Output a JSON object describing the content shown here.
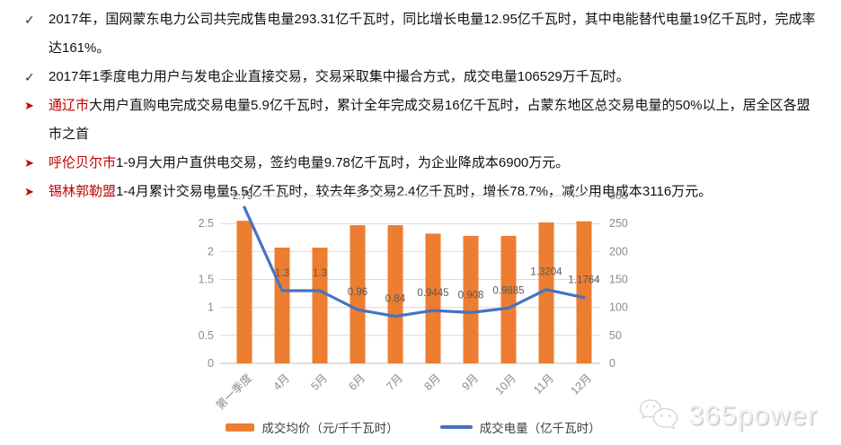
{
  "markers": {
    "check": "✓",
    "arrow": "➤"
  },
  "bullets": [
    {
      "style": "check",
      "lead": "",
      "text": "2017年，国网蒙东电力公司共完成售电量293.31亿千瓦时，同比增长电量12.95亿千瓦时，其中电能替代电量19亿千瓦时，完成率达161%。"
    },
    {
      "style": "check",
      "lead": "",
      "text": "2017年1季度电力用户与发电企业直接交易，交易采取集中撮合方式，成交电量106529万千瓦时。"
    },
    {
      "style": "arrow",
      "lead": "通辽市",
      "text": "大用户直购电完成交易电量5.9亿千瓦时，累计全年完成交易16亿千瓦时，占蒙东地区总交易电量的50%以上，居全区各盟市之首"
    },
    {
      "style": "arrow",
      "lead": "呼伦贝尔市",
      "text": "1-9月大用户直供电交易，签约电量9.78亿千瓦时，为企业降成本6900万元。"
    },
    {
      "style": "arrow",
      "lead": "锡林郭勒盟",
      "text": "1-4月累计交易电量5.5亿千瓦时，较去年多交易2.4亿千瓦时，增长78.7%，减少用电成本3116万元。"
    }
  ],
  "colors": {
    "accent_red": "#C00000",
    "bar_orange": "#ED7D31",
    "line_blue": "#4472C4",
    "grid_gray": "#D9D9D9",
    "axis_line_gray": "#BFBFBF",
    "tick_gray": "#8C8C8C",
    "data_label_gray": "#595959"
  },
  "chart_data": {
    "type": "bar",
    "subtype": "bar+line-combo",
    "categories": [
      "第一季度",
      "4月",
      "5月",
      "6月",
      "7月",
      "8月",
      "9月",
      "10月",
      "11月",
      "12月"
    ],
    "series": [
      {
        "name": "成交均价（元/千千瓦时）",
        "type": "bar",
        "axis": "right",
        "values": [
          255,
          207,
          207,
          247,
          247,
          232,
          228,
          228,
          252,
          254
        ]
      },
      {
        "name": "成交电量（亿千瓦时）",
        "type": "line",
        "axis": "left",
        "values": [
          2.79,
          1.3,
          1.3,
          0.96,
          0.84,
          0.9445,
          0.908,
          0.9885,
          1.3204,
          1.1764
        ],
        "labels": [
          "2.79",
          "1.3",
          "1.3",
          "0.96",
          "0.84",
          "0.9445",
          "0.908",
          "0.9885",
          "1.3204",
          "1.1764"
        ]
      }
    ],
    "left_axis": {
      "min": 0,
      "max": 3,
      "step": 0.5,
      "ticks": [
        "0",
        "0.5",
        "1",
        "1.5",
        "2",
        "2.5",
        "3"
      ]
    },
    "right_axis": {
      "min": 0,
      "max": 300,
      "step": 50,
      "ticks": [
        "0",
        "50",
        "100",
        "150",
        "200",
        "250",
        "300"
      ]
    },
    "grid": true,
    "legend_position": "bottom"
  },
  "watermark": {
    "text": "365power",
    "icon": "wechat-icon"
  }
}
